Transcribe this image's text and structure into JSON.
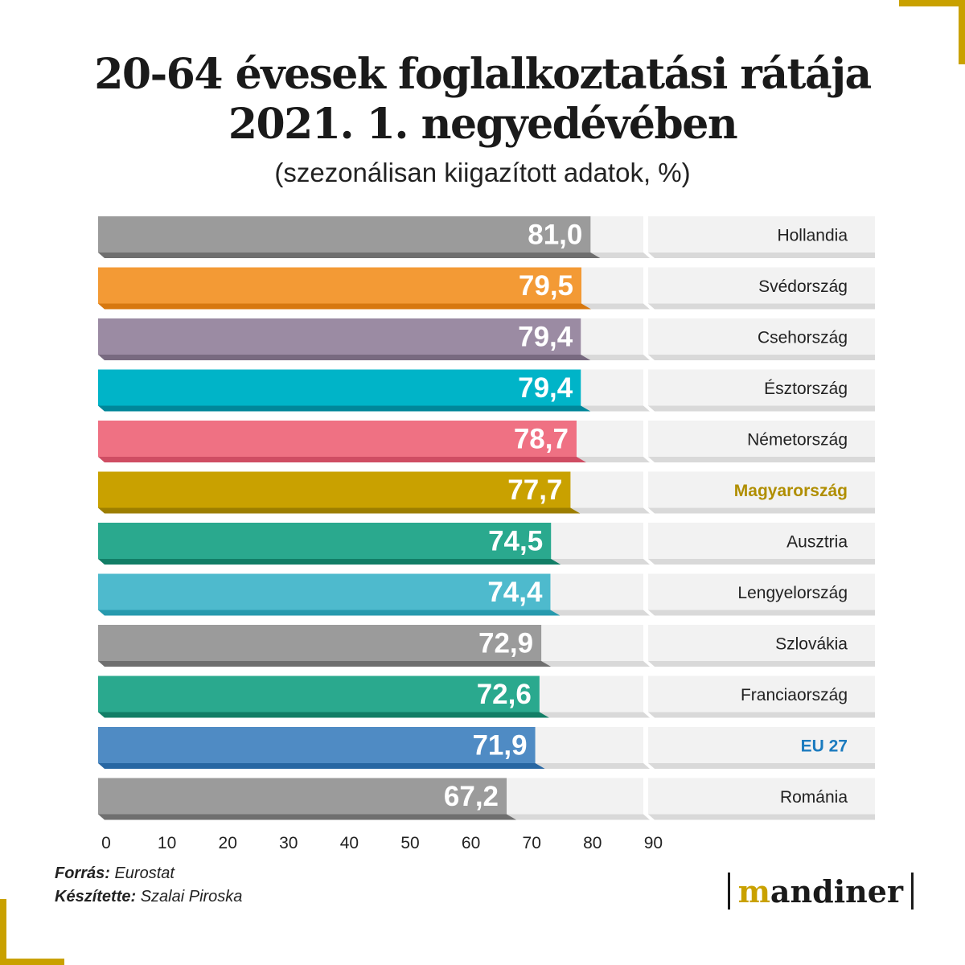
{
  "title_line1": "20-64 évesek foglalkoztatási rátája",
  "title_line2": "2021. 1. negyedévében",
  "subtitle": "(szezonálisan kiigazított adatok, %)",
  "chart_data": {
    "type": "bar",
    "orientation": "horizontal",
    "categories": [
      "Hollandia",
      "Svédország",
      "Csehország",
      "Észtország",
      "Németország",
      "Magyarország",
      "Ausztria",
      "Lengyelország",
      "Szlovákia",
      "Franciaország",
      "EU 27",
      "Románia"
    ],
    "values": [
      81.0,
      79.5,
      79.4,
      79.4,
      78.7,
      77.7,
      74.5,
      74.4,
      72.9,
      72.6,
      71.9,
      67.2
    ],
    "value_labels": [
      "81,0",
      "79,5",
      "79,4",
      "79,4",
      "78,7",
      "77,7",
      "74,5",
      "74,4",
      "72,9",
      "72,6",
      "71,9",
      "67,2"
    ],
    "colors": [
      "#9b9b9b",
      "#f39a35",
      "#9b8ba3",
      "#00b4c8",
      "#ef7183",
      "#c9a100",
      "#2aa98e",
      "#4ebacd",
      "#9b9b9b",
      "#2aa98e",
      "#4f8bc4",
      "#9b9b9b"
    ],
    "shadow_colors": [
      "#6f6f6f",
      "#d7780f",
      "#786a80",
      "#00879a",
      "#cf4d63",
      "#9d7e00",
      "#127e66",
      "#279aae",
      "#6f6f6f",
      "#127e66",
      "#2766a2",
      "#6f6f6f"
    ],
    "label_colors": [
      "#222222",
      "#222222",
      "#222222",
      "#222222",
      "#222222",
      "#b08e00",
      "#222222",
      "#222222",
      "#222222",
      "#222222",
      "#1b7bbf",
      "#222222"
    ],
    "label_bold": [
      false,
      false,
      false,
      false,
      false,
      true,
      false,
      false,
      false,
      false,
      true,
      false
    ],
    "xlim": [
      0,
      90
    ],
    "xticks": [
      0,
      10,
      20,
      30,
      40,
      50,
      60,
      70,
      80,
      90
    ]
  },
  "credits": {
    "source_key": "Forrás:",
    "source_val": "Eurostat",
    "author_key": "Készítette:",
    "author_val": "Szalai Piroska"
  },
  "logo": {
    "m": "m",
    "rest": "andiner"
  },
  "accent_color": "#c9a100"
}
